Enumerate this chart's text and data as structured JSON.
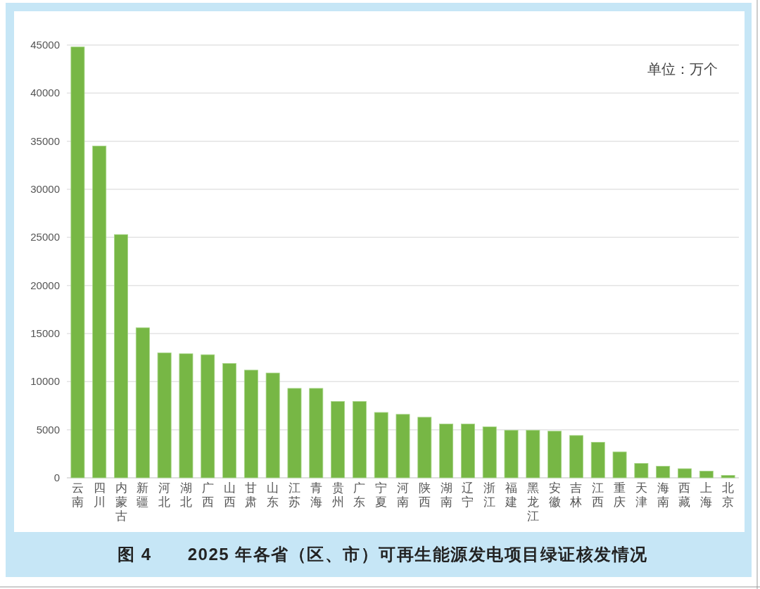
{
  "chart_data": {
    "type": "bar",
    "title": "图 4　　2025 年各省（区、市）可再生能源发电项目绿证核发情况",
    "categories": [
      "云南",
      "四川",
      "内蒙古",
      "新疆",
      "河北",
      "湖北",
      "广西",
      "山西",
      "甘肃",
      "山东",
      "江苏",
      "青海",
      "贵州",
      "广东",
      "宁夏",
      "河南",
      "陕西",
      "湖南",
      "辽宁",
      "浙江",
      "福建",
      "黑龙江",
      "安徽",
      "吉林",
      "江西",
      "重庆",
      "天津",
      "海南",
      "西藏",
      "上海",
      "北京"
    ],
    "values": [
      44800,
      34500,
      25300,
      15600,
      13000,
      12900,
      12800,
      11900,
      11200,
      10900,
      9300,
      9300,
      7950,
      7950,
      6800,
      6600,
      6300,
      5600,
      5600,
      5300,
      4950,
      4950,
      4850,
      4400,
      3700,
      2700,
      1500,
      1200,
      950,
      700,
      250
    ],
    "color": "#77b745",
    "ylim": [
      0,
      45000
    ],
    "yticks": [
      0,
      5000,
      10000,
      15000,
      20000,
      25000,
      30000,
      35000,
      40000,
      45000
    ],
    "grid": "y",
    "annotations": [
      "单位：万个"
    ]
  }
}
